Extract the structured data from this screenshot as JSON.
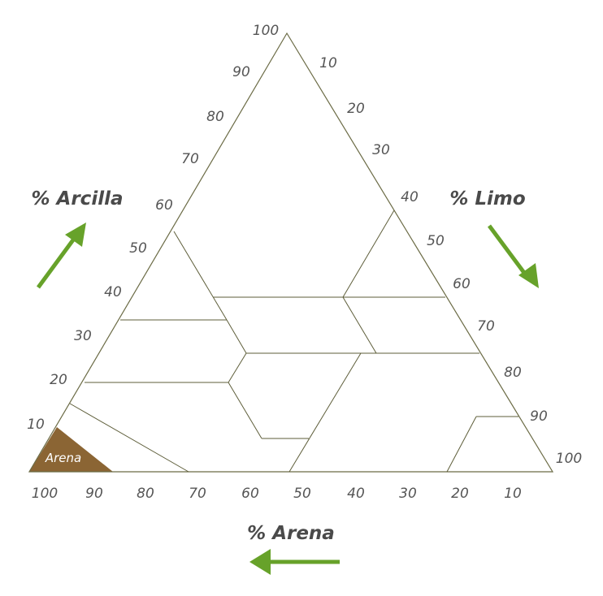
{
  "axes": {
    "clay": {
      "title": "% Arcilla",
      "ticks": [
        "10",
        "20",
        "30",
        "40",
        "50",
        "60",
        "70",
        "80",
        "90",
        "100"
      ]
    },
    "silt": {
      "title": "% Limo",
      "ticks": [
        "10",
        "20",
        "30",
        "40",
        "50",
        "60",
        "70",
        "80",
        "90",
        "100"
      ]
    },
    "sand": {
      "title": "% Arena",
      "ticks": [
        "100",
        "90",
        "80",
        "70",
        "60",
        "50",
        "40",
        "30",
        "20",
        "10"
      ]
    }
  },
  "highlight": {
    "label": "Arena",
    "color": "#8b6534"
  },
  "arrow_color": "#67a22a"
}
